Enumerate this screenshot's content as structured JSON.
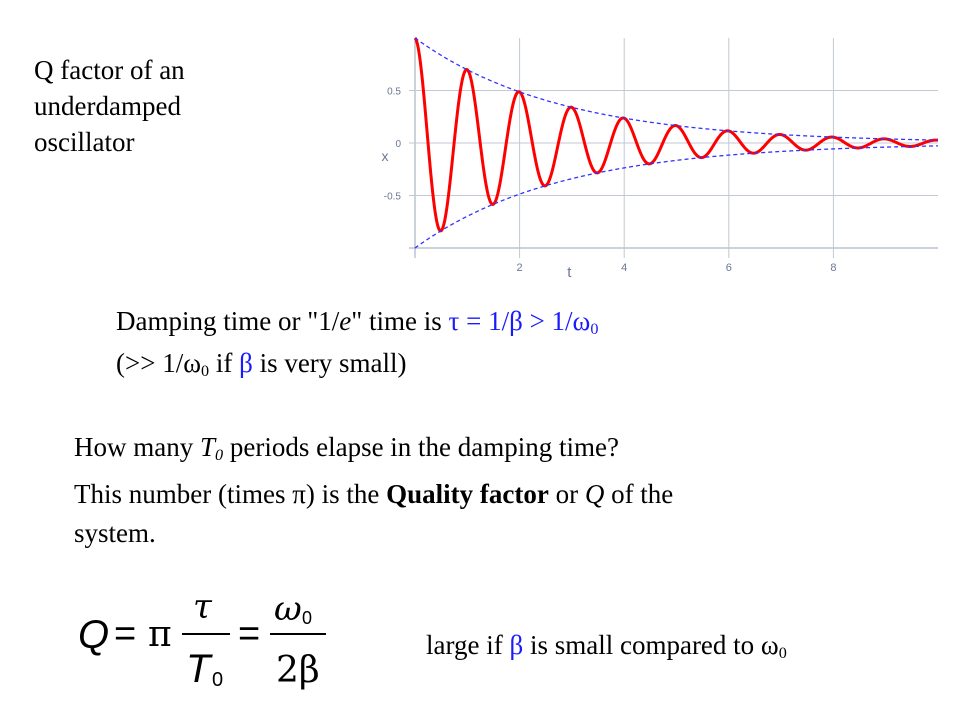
{
  "title_lines": [
    "Q factor of an",
    "underdamped",
    "oscillator"
  ],
  "damping": {
    "prefix": "Damping time or \"1/",
    "e_italic": "e",
    "mid": "\" time is ",
    "eq": "τ = 1/β > 1/ω",
    "eq_sub": "0",
    "line2_open": "(>> 1/ω",
    "line2_sub": "0",
    "line2_if": " if ",
    "beta": "β",
    "line2_end": " is very small)"
  },
  "paragraph": {
    "l1_a": "How many ",
    "l1_T": "T",
    "l1_sub": "0",
    "l1_b": " periods elapse in the damping time?",
    "l2_a": "This number (times π) is the ",
    "l2_bold": "Quality factor",
    "l2_b": " or ",
    "l2_Q": "Q",
    "l2_c": " of the",
    "l3": "system."
  },
  "formula": {
    "Q": "Q",
    "eq1": "=",
    "pi": "π",
    "tau": "τ",
    "T": "T",
    "T_sub": "0",
    "eq2": "=",
    "omega": "ω",
    "omega_sub": "0",
    "two_beta": "2β"
  },
  "large": {
    "a": "large if ",
    "beta": "β",
    "b": " is small compared to ",
    "omega": "ω",
    "sub": "0"
  },
  "chart_data": {
    "type": "line",
    "title": "",
    "xlabel": "t",
    "ylabel": "x",
    "xlim": [
      0,
      10
    ],
    "ylim": [
      -1,
      1
    ],
    "x_ticks": [
      2,
      4,
      6,
      8
    ],
    "y_ticks": [
      0.5,
      0,
      -0.5
    ],
    "y_tick_labels": [
      "0.5",
      "0",
      "-0.5"
    ],
    "grid": true,
    "series": [
      {
        "kind": "damped_oscillation",
        "amplitude": 1.0,
        "decay_rate": 0.36,
        "angular_frequency": 6.3,
        "color": "#ff0000"
      },
      {
        "kind": "envelope_upper",
        "amplitude": 1.0,
        "decay_rate": 0.36,
        "color": "#3333ff"
      },
      {
        "kind": "envelope_lower",
        "amplitude": -1.0,
        "decay_rate": 0.36,
        "color": "#3333ff"
      }
    ]
  }
}
